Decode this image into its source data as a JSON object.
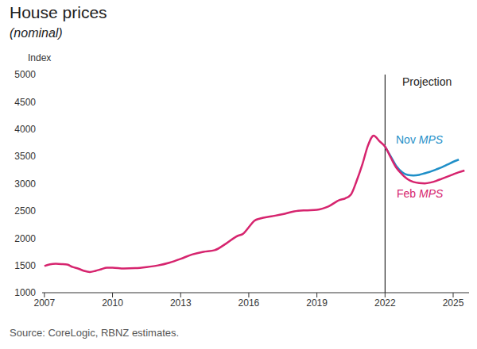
{
  "chart_data": {
    "type": "line",
    "title": "House prices",
    "subtitle": "(nominal)",
    "y_label": "Index",
    "source": "Source: CoreLogic, RBNZ estimates.",
    "x": [
      2007,
      2007.25,
      2007.5,
      2007.75,
      2008,
      2008.25,
      2008.5,
      2008.75,
      2009,
      2009.25,
      2009.5,
      2009.75,
      2010,
      2010.5,
      2011,
      2011.5,
      2012,
      2012.5,
      2013,
      2013.5,
      2014,
      2014.5,
      2015,
      2015.5,
      2015.75,
      2016,
      2016.25,
      2016.5,
      2017,
      2017.5,
      2018,
      2018.5,
      2019,
      2019.5,
      2020,
      2020.25,
      2020.5,
      2020.75,
      2021,
      2021.25,
      2021.5,
      2021.75,
      2022,
      2022.25,
      2022.5,
      2022.75,
      2023,
      2023.25,
      2023.5,
      2023.75,
      2024,
      2024.25,
      2024.5,
      2024.75,
      2025,
      2025.25,
      2025.5
    ],
    "series": [
      {
        "name": "Nov MPS",
        "color": "#1f8fc8",
        "values": [
          null,
          null,
          null,
          null,
          null,
          null,
          null,
          null,
          null,
          null,
          null,
          null,
          null,
          null,
          null,
          null,
          null,
          null,
          null,
          null,
          null,
          null,
          null,
          null,
          null,
          null,
          null,
          null,
          null,
          null,
          null,
          null,
          null,
          null,
          null,
          null,
          null,
          null,
          null,
          null,
          null,
          null,
          3680,
          3500,
          3320,
          3210,
          3160,
          3150,
          3160,
          3190,
          3220,
          3260,
          3300,
          3350,
          3400,
          3440,
          null
        ]
      },
      {
        "name": "Feb MPS",
        "color": "#d6246e",
        "values": [
          1490,
          1520,
          1530,
          1525,
          1515,
          1470,
          1440,
          1400,
          1380,
          1400,
          1430,
          1460,
          1460,
          1445,
          1450,
          1470,
          1500,
          1550,
          1620,
          1700,
          1750,
          1780,
          1900,
          2040,
          2080,
          2200,
          2320,
          2360,
          2400,
          2440,
          2490,
          2510,
          2520,
          2580,
          2700,
          2730,
          2800,
          3050,
          3350,
          3700,
          3880,
          3780,
          3680,
          3480,
          3290,
          3170,
          3080,
          3030,
          3010,
          3005,
          3020,
          3050,
          3090,
          3130,
          3170,
          3210,
          3240
        ]
      }
    ],
    "annotations": [
      {
        "text": "Projection",
        "x": 2022
      }
    ],
    "xlim": [
      2006.9,
      2025.7
    ],
    "xticks": [
      2007,
      2010,
      2013,
      2016,
      2019,
      2022,
      2025
    ],
    "ylim": [
      1000,
      5000
    ],
    "yticks": [
      1000,
      1500,
      2000,
      2500,
      3000,
      3500,
      4000,
      4500,
      5000
    ],
    "grid": false
  }
}
